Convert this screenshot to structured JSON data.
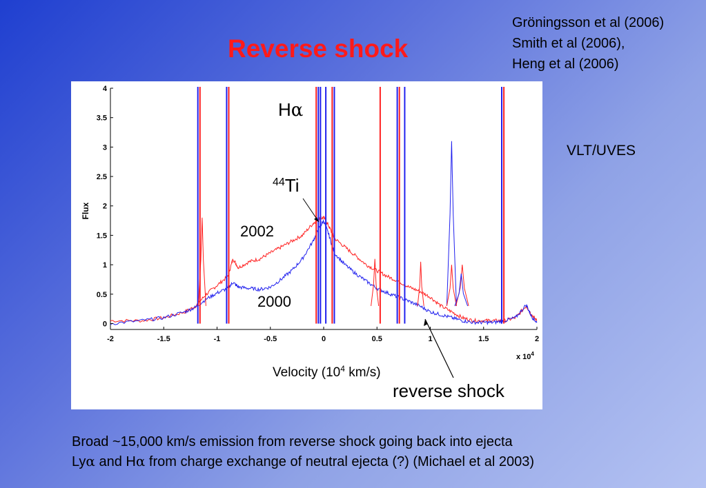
{
  "slide": {
    "title": "Reverse shock",
    "references": [
      "Gröningsson et al (2006)",
      "Smith et al (2006),",
      "Heng et al (2006)"
    ],
    "instrument": "VLT/UVES",
    "caption": {
      "line1": "Broad ~15,000 km/s emission from reverse shock going back into ejecta",
      "line2_a": "Ly",
      "line2_b": "α",
      "line2_c": " and H",
      "line2_d": "α",
      "line2_e": " from charge exchange of neutral ejecta  (?) (Michael et al 2003)"
    }
  },
  "chart_data": {
    "type": "line",
    "title": "",
    "xlabel_prefix": "Velocity (10",
    "xlabel_sup": "4",
    "xlabel_suffix": " km/s)",
    "ylabel": "Flux",
    "x_multiplier_label": "x 10",
    "x_multiplier_exp": "4",
    "xlim": [
      -2,
      2
    ],
    "ylim": [
      -0.1,
      4
    ],
    "xticks": [
      -2,
      -1.5,
      -1,
      -0.5,
      0,
      0.5,
      1,
      1.5,
      2
    ],
    "xtick_labels": [
      "-2",
      "-1.5",
      "-1",
      "-0.5",
      "0",
      "0.5",
      "1",
      "1.5",
      "2"
    ],
    "yticks": [
      0,
      0.5,
      1,
      1.5,
      2,
      2.5,
      3,
      3.5,
      4
    ],
    "ytick_labels": [
      "0",
      "0.5",
      "1",
      "1.5",
      "2",
      "2.5",
      "3",
      "3.5",
      "4"
    ],
    "grid": false,
    "series": [
      {
        "name": "2002",
        "color": "#ff2020",
        "x": [
          -2,
          -1.7,
          -1.5,
          -1.3,
          -1.2,
          -1.1,
          -1.0,
          -0.9,
          -0.85,
          -0.8,
          -0.7,
          -0.6,
          -0.5,
          -0.4,
          -0.3,
          -0.2,
          -0.1,
          -0.05,
          0,
          0.05,
          0.1,
          0.2,
          0.3,
          0.4,
          0.5,
          0.6,
          0.7,
          0.8,
          0.9,
          1.0,
          1.1,
          1.2,
          1.3,
          1.4,
          1.5,
          1.6,
          1.7,
          1.8,
          1.9,
          1.95,
          2
        ],
        "y": [
          0.05,
          0.05,
          0.1,
          0.2,
          0.3,
          0.5,
          0.65,
          0.8,
          1.1,
          0.95,
          1.05,
          1.1,
          1.2,
          1.3,
          1.4,
          1.5,
          1.7,
          1.78,
          1.8,
          1.65,
          1.45,
          1.3,
          1.15,
          1.0,
          0.9,
          0.8,
          0.72,
          0.62,
          0.55,
          0.45,
          0.3,
          0.2,
          0.1,
          0.05,
          0.05,
          0.05,
          0.05,
          0.1,
          0.3,
          0.15,
          0.05
        ]
      },
      {
        "name": "2000",
        "color": "#2020ee",
        "x": [
          -2,
          -1.7,
          -1.5,
          -1.3,
          -1.2,
          -1.1,
          -1.0,
          -0.9,
          -0.85,
          -0.8,
          -0.7,
          -0.6,
          -0.5,
          -0.4,
          -0.3,
          -0.2,
          -0.1,
          -0.05,
          0,
          0.05,
          0.1,
          0.2,
          0.3,
          0.4,
          0.5,
          0.6,
          0.7,
          0.8,
          0.9,
          1.0,
          1.1,
          1.2,
          1.3,
          1.4,
          1.5,
          1.6,
          1.7,
          1.8,
          1.9,
          1.95,
          2
        ],
        "y": [
          0.0,
          0.05,
          0.1,
          0.2,
          0.28,
          0.42,
          0.52,
          0.6,
          0.7,
          0.62,
          0.6,
          0.58,
          0.62,
          0.75,
          0.9,
          1.1,
          1.4,
          1.6,
          1.75,
          1.5,
          1.2,
          1.0,
          0.85,
          0.72,
          0.6,
          0.52,
          0.45,
          0.38,
          0.3,
          0.2,
          0.15,
          0.1,
          0.05,
          0.02,
          0.02,
          0.02,
          0.05,
          0.1,
          0.32,
          0.12,
          0.02
        ]
      }
    ],
    "spikes": [
      {
        "x": -1.18,
        "h": 4.1,
        "color": "#2020ee"
      },
      {
        "x": -1.16,
        "h": 4.1,
        "color": "#ff2020"
      },
      {
        "x": -0.91,
        "h": 4.1,
        "color": "#2020ee"
      },
      {
        "x": -0.89,
        "h": 4.1,
        "color": "#ff2020"
      },
      {
        "x": -0.07,
        "h": 4.1,
        "color": "#ff2020"
      },
      {
        "x": -0.05,
        "h": 4.1,
        "color": "#2020ee"
      },
      {
        "x": -0.03,
        "h": 4.1,
        "color": "#2020ee"
      },
      {
        "x": 0.02,
        "h": 4.1,
        "color": "#2020ee"
      },
      {
        "x": 0.08,
        "h": 4.1,
        "color": "#ff2020"
      },
      {
        "x": 0.1,
        "h": 4.1,
        "color": "#2020ee"
      },
      {
        "x": 0.53,
        "h": 4.05,
        "color": "#ff2020"
      },
      {
        "x": 0.69,
        "h": 4.1,
        "color": "#2020ee"
      },
      {
        "x": 0.71,
        "h": 4.1,
        "color": "#ff2020"
      },
      {
        "x": 0.76,
        "h": 4.1,
        "color": "#2020ee"
      },
      {
        "x": 1.67,
        "h": 4.1,
        "color": "#2020ee"
      },
      {
        "x": 1.69,
        "h": 4.1,
        "color": "#ff2020"
      }
    ],
    "bumps": [
      {
        "x": 1.2,
        "h": 3.1,
        "w": 0.015,
        "color": "#2020ee"
      },
      {
        "x": 1.2,
        "h": 1.0,
        "w": 0.015,
        "color": "#ff2020"
      },
      {
        "x": 1.3,
        "h": 1.0,
        "w": 0.02,
        "color": "#ff2020"
      },
      {
        "x": 1.29,
        "h": 0.85,
        "w": 0.02,
        "color": "#2020ee"
      },
      {
        "x": -1.14,
        "h": 1.8,
        "w": 0.012,
        "color": "#ff2020"
      },
      {
        "x": 0.91,
        "h": 1.05,
        "w": 0.01,
        "color": "#ff2020"
      },
      {
        "x": 0.48,
        "h": 1.1,
        "w": 0.012,
        "color": "#ff2020"
      }
    ],
    "annotations": {
      "halpha_main": "H",
      "halpha_greek": "α",
      "ti_sup": "44",
      "ti_label": "Ti",
      "label_2002": "2002",
      "label_2000": "2000",
      "reverse_shock": "reverse shock"
    }
  }
}
